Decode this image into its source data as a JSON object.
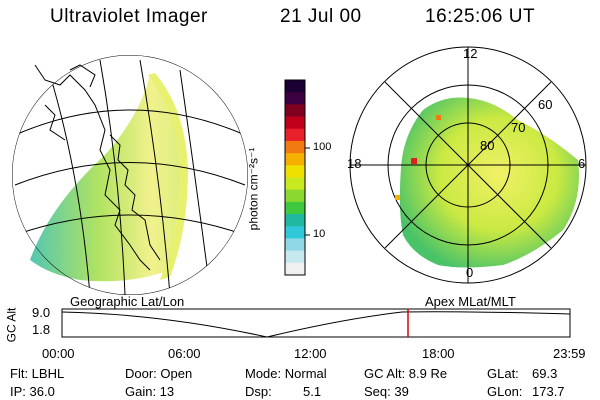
{
  "header": {
    "instrument": "Ultraviolet Imager",
    "date": "21 Jul 00",
    "time": "16:25:06 UT"
  },
  "colorbar": {
    "unit_label": "photon cm⁻²s⁻¹",
    "ticks": [
      "100",
      "10"
    ],
    "colors": [
      "#1a0033",
      "#3b0040",
      "#800020",
      "#c0001a",
      "#e8202a",
      "#f07a10",
      "#f5b000",
      "#f0e000",
      "#c8e820",
      "#8ad830",
      "#40c840",
      "#20b8a0",
      "#30c8d8",
      "#90d8e8",
      "#c8e8f0",
      "#f0f0f0"
    ]
  },
  "polar_plot": {
    "mlt_labels": {
      "top": "12",
      "left": "18",
      "right": "6",
      "bottom": "0"
    },
    "lat_labels": [
      "80",
      "70",
      "60"
    ]
  },
  "timeline": {
    "y_axis_label": "GC Alt",
    "y_ticks": [
      "9.0",
      "1.8"
    ],
    "left_caption": "Geographic Lat/Lon",
    "right_caption": "Apex MLat/MLT",
    "x_ticks": [
      "00:00",
      "06:00",
      "12:00",
      "18:00",
      "23:59"
    ],
    "current_marker_color": "#e00000"
  },
  "info": {
    "flt": "Flt: LBHL",
    "ip": "IP: 36.0",
    "door": "Door: Open",
    "gain": "Gain: 13",
    "mode": "Mode: Normal",
    "dsp_label": "Dsp:",
    "dsp_value": "5.1",
    "gc_alt": "GC Alt: 8.9 Re",
    "seq": "Seq: 39",
    "glat_label": "GLat:",
    "glat_value": "69.3",
    "glon_label": "GLon:",
    "glon_value": "173.7"
  }
}
